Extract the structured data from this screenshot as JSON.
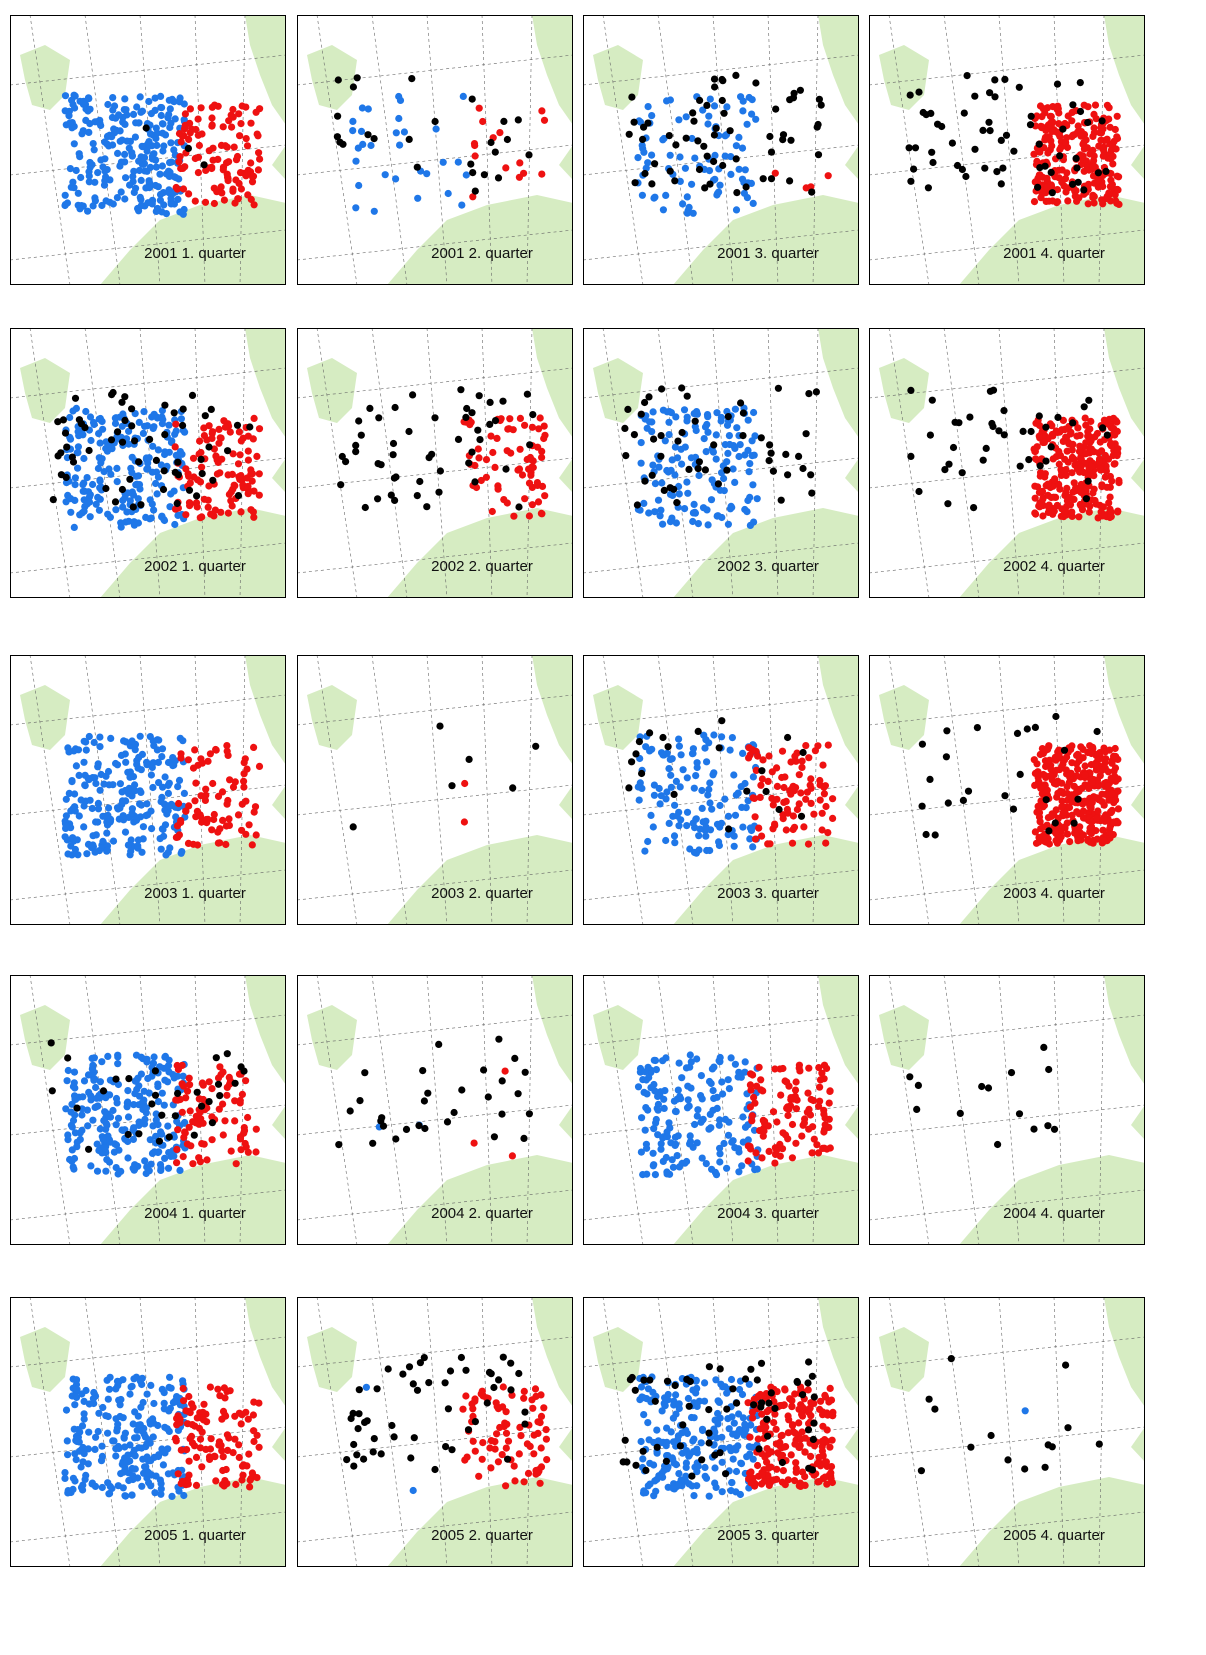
{
  "panels": [
    {
      "label": "2001 1. quarter"
    },
    {
      "label": "2001 2. quarter"
    },
    {
      "label": "2001 3. quarter"
    },
    {
      "label": "2001 4. quarter"
    },
    {
      "label": "2002 1. quarter"
    },
    {
      "label": "2002 2. quarter"
    },
    {
      "label": "2002 3. quarter"
    },
    {
      "label": "2002 4. quarter"
    },
    {
      "label": "2003 1. quarter"
    },
    {
      "label": "2003 2. quarter"
    },
    {
      "label": "2003 3. quarter"
    },
    {
      "label": "2003 4. quarter"
    },
    {
      "label": "2004 1. quarter"
    },
    {
      "label": "2004 2. quarter"
    },
    {
      "label": "2004 3. quarter"
    },
    {
      "label": "2004 4. quarter"
    },
    {
      "label": "2005 1. quarter"
    },
    {
      "label": "2005 2. quarter"
    },
    {
      "label": "2005 3. quarter"
    },
    {
      "label": "2005 4. quarter"
    }
  ]
}
